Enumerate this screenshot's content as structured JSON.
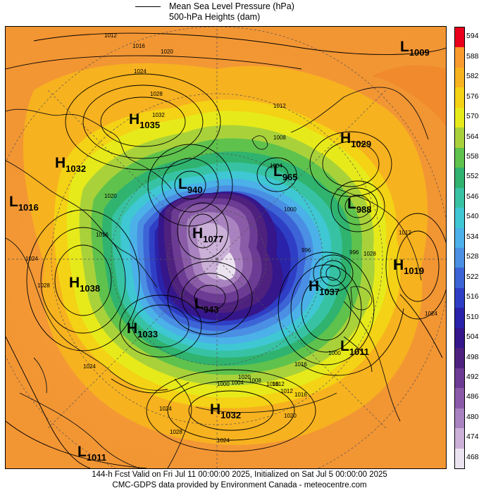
{
  "legend": {
    "line1": "Mean Sea Level Pressure (hPa)",
    "line2": "500-hPa Heights (dam)"
  },
  "colorbar": {
    "levels": [
      "594",
      "588",
      "582",
      "576",
      "570",
      "564",
      "558",
      "552",
      "546",
      "540",
      "534",
      "528",
      "522",
      "516",
      "510",
      "504",
      "498",
      "492",
      "486",
      "480",
      "474",
      "468"
    ],
    "colors": [
      "#e8001c",
      "#f89a2e",
      "#f7b21f",
      "#f4d215",
      "#e7ea1a",
      "#a9d23a",
      "#5fc24c",
      "#2fb36f",
      "#37c3a3",
      "#3fc7d3",
      "#4bb1e8",
      "#4a8fe3",
      "#3d64d6",
      "#2f3fc5",
      "#2a22a8",
      "#35168b",
      "#4e217f",
      "#6c3b93",
      "#8a5ca8",
      "#a983bf",
      "#cbb0d8",
      "#ece3f1"
    ]
  },
  "pressure_centers": [
    {
      "type": "L",
      "value": "1009"
    },
    {
      "type": "H",
      "value": "1035"
    },
    {
      "type": "H",
      "value": "1029"
    },
    {
      "type": "H",
      "value": "1032"
    },
    {
      "type": "L",
      "value": "940"
    },
    {
      "type": "L",
      "value": "965"
    },
    {
      "type": "L",
      "value": "1016"
    },
    {
      "type": "L",
      "value": "988"
    },
    {
      "type": "H",
      "value": "1077"
    },
    {
      "type": "H",
      "value": "1019"
    },
    {
      "type": "H",
      "value": "1038"
    },
    {
      "type": "H",
      "value": "1037"
    },
    {
      "type": "L",
      "value": "943"
    },
    {
      "type": "H",
      "value": "1033"
    },
    {
      "type": "L",
      "value": "1011"
    },
    {
      "type": "H",
      "value": "1032"
    },
    {
      "type": "L",
      "value": "1011"
    }
  ],
  "isobar_labels": [
    "1012",
    "1016",
    "1020",
    "1024",
    "1028",
    "1032",
    "1012",
    "1008",
    "1004",
    "1000",
    "996",
    "1016",
    "1020",
    "1024",
    "1028",
    "1024",
    "1020",
    "1016",
    "1012",
    "1008",
    "1004",
    "1000",
    "1016",
    "1020",
    "1024",
    "1028",
    "1024",
    "1016",
    "1012",
    "1000",
    "996",
    "1028",
    "1024",
    "1012"
  ],
  "footer": {
    "line1": "144-h Fcst Valid on Fri Jul 11 00:00:00 2025, Initialized on Sat Jul  5 00:00:00 2025",
    "line2": "CMC-GDPS data provided by Environment Canada - meteocentre.com"
  }
}
